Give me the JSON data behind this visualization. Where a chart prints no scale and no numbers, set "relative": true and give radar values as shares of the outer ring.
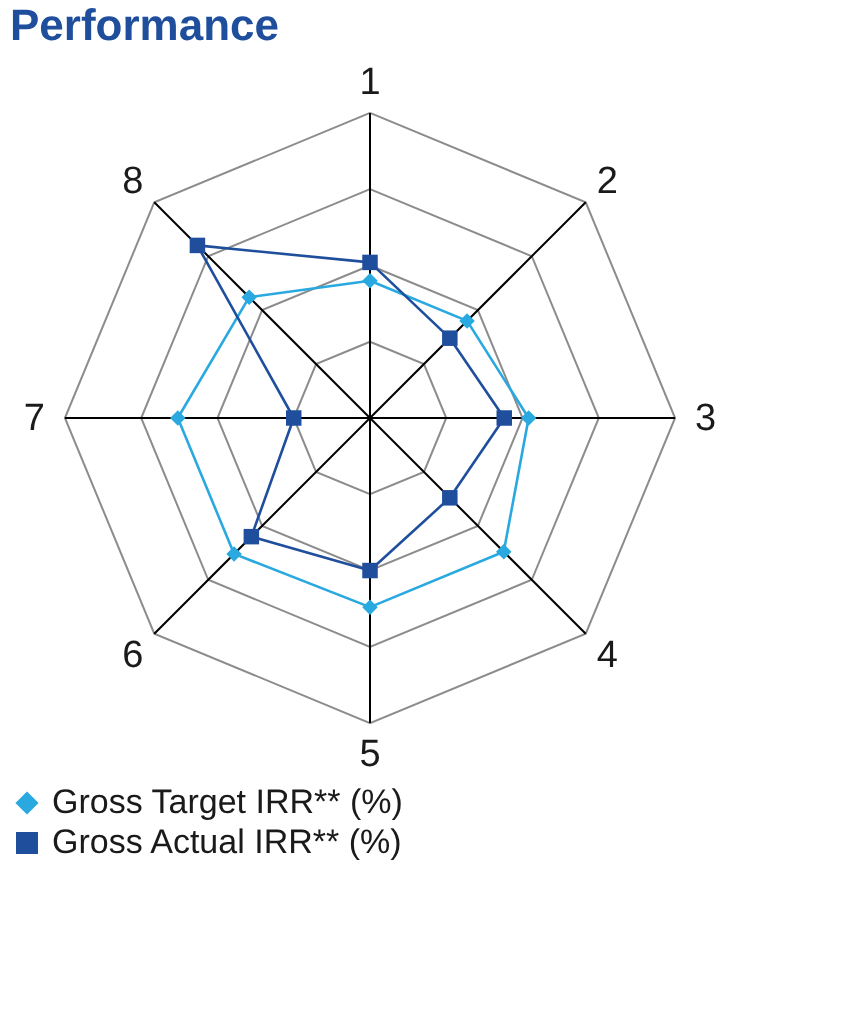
{
  "chart_data": {
    "type": "radar",
    "title": "Performance",
    "relative": true,
    "legend": "bottom",
    "categories": [
      "1",
      "2",
      "3",
      "4",
      "5",
      "6",
      "7",
      "8"
    ],
    "series": [
      {
        "name": "Gross Target IRR** (%)",
        "color": "#29a9e0",
        "marker": "diamond",
        "values": [
          0.45,
          0.45,
          0.52,
          0.62,
          0.62,
          0.63,
          0.63,
          0.56
        ]
      },
      {
        "name": "Gross Actual IRR** (%)",
        "color": "#1f4e9c",
        "marker": "square",
        "values": [
          0.51,
          0.37,
          0.44,
          0.37,
          0.5,
          0.55,
          0.25,
          0.8
        ]
      }
    ]
  }
}
